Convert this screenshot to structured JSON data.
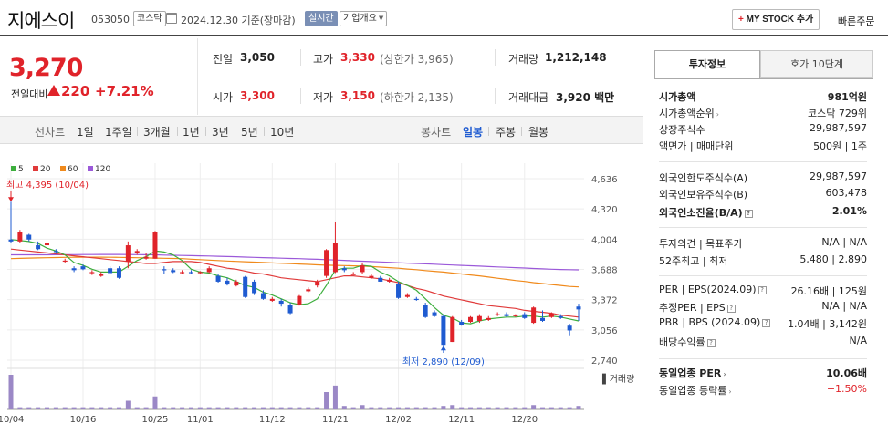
{
  "header": {
    "stock_name": "지에스이",
    "stock_code": "053050",
    "market_badge": "코스닥",
    "base_date": "2024.12.30 기준(장마감)",
    "realtime_badge": "실시간",
    "company_overview": "기업개요",
    "mystock_button": "MY STOCK 추가",
    "quick_order": "빠른주문"
  },
  "price": {
    "current": "3,270",
    "change_label": "전일대비",
    "change_amount": "220",
    "change_rate": "+7.21%"
  },
  "quote": {
    "prev_close_label": "전일",
    "prev_close": "3,050",
    "high_label": "고가",
    "high": "3,330",
    "upper_limit": "(상한가 3,965)",
    "volume_label": "거래량",
    "volume": "1,212,148",
    "open_label": "시가",
    "open": "3,300",
    "low_label": "저가",
    "low": "3,150",
    "lower_limit": "(하한가 2,135)",
    "amount_label": "거래대금",
    "amount": "3,920 백만"
  },
  "period_bar": {
    "line_label": "선차트",
    "line_periods": [
      "1일",
      "1주일",
      "3개월",
      "1년",
      "3년",
      "5년",
      "10년"
    ],
    "candle_label": "봉차트",
    "candle_periods": [
      "일봉",
      "주봉",
      "월봉"
    ],
    "active_candle": "일봉"
  },
  "side_panel": {
    "tab_active": "투자정보",
    "tab_other": "호가 10단계",
    "market_cap_label": "시가총액",
    "market_cap": "981억원",
    "market_cap_rank_label": "시가총액순위",
    "market_cap_rank": "코스닥 729위",
    "listed_shares_label": "상장주식수",
    "listed_shares": "29,987,597",
    "par_label": "액면가 | 매매단위",
    "par_value": "500원 | 1주",
    "foreign_limit_label": "외국인한도주식수(A)",
    "foreign_limit": "29,987,597",
    "foreign_held_label": "외국인보유주식수(B)",
    "foreign_held": "603,478",
    "foreign_ratio_label": "외국인소진율(B/A)",
    "foreign_ratio": "2.01%",
    "opinion_label": "투자의견 | 목표주가",
    "opinion_value": "N/A | N/A",
    "week52_label": "52주최고 | 최저",
    "week52_value": "5,480 | 2,890",
    "per_label": "PER | EPS(2024.09)",
    "per_value": "26.16배 | 125원",
    "est_per_label": "추정PER | EPS",
    "est_per_value": "N/A | N/A",
    "pbr_label": "PBR | BPS (2024.09)",
    "pbr_value": "1.04배 | 3,142원",
    "dividend_label": "배당수익률",
    "dividend_value": "N/A",
    "sector_per_label": "동일업종 PER",
    "sector_per": "10.06배",
    "sector_change_label": "동일업종 등락률",
    "sector_change": "+1.50%"
  },
  "chart_data": {
    "type": "candlestick",
    "legend": [
      {
        "name": "5",
        "color": "#3dae3d"
      },
      {
        "name": "20",
        "color": "#e03a3a"
      },
      {
        "name": "60",
        "color": "#f08a1c"
      },
      {
        "name": "120",
        "color": "#9b59d9"
      }
    ],
    "y_ticks": [
      "4,636",
      "4,320",
      "4,004",
      "3,688",
      "3,372",
      "3,056",
      "2,740"
    ],
    "ylim": [
      2740,
      4636
    ],
    "x_ticks": [
      {
        "label": "10/04",
        "index": 0
      },
      {
        "label": "10/16",
        "index": 8
      },
      {
        "label": "10/25",
        "index": 16
      },
      {
        "label": "11/01",
        "index": 21
      },
      {
        "label": "11/12",
        "index": 29
      },
      {
        "label": "11/21",
        "index": 36
      },
      {
        "label": "12/02",
        "index": 43
      },
      {
        "label": "12/11",
        "index": 50
      },
      {
        "label": "12/20",
        "index": 57
      }
    ],
    "high_annotation": "최고 4,395 (10/04)",
    "low_annotation": "최저 2,890 (12/09)",
    "volume_label": "거래량",
    "candles": [
      [
        4000,
        3980,
        4395,
        3960
      ],
      [
        3980,
        4080,
        4100,
        3960
      ],
      [
        4050,
        4000,
        4060,
        3980
      ],
      [
        3940,
        3900,
        3980,
        3890
      ],
      [
        3940,
        3960,
        3980,
        3930
      ],
      [
        3880,
        3870,
        3900,
        3850
      ],
      [
        3780,
        3780,
        3800,
        3760
      ],
      [
        3700,
        3680,
        3720,
        3660
      ],
      [
        3720,
        3690,
        3740,
        3680
      ],
      [
        3650,
        3660,
        3680,
        3630
      ],
      [
        3620,
        3640,
        3660,
        3610
      ],
      [
        3700,
        3650,
        3720,
        3640
      ],
      [
        3700,
        3600,
        3720,
        3590
      ],
      [
        3770,
        3940,
        3980,
        3700
      ],
      [
        3860,
        3880,
        3900,
        3840
      ],
      [
        3800,
        3820,
        3860,
        3790
      ],
      [
        3800,
        4080,
        4090,
        3800
      ],
      [
        3690,
        3680,
        3720,
        3640
      ],
      [
        3680,
        3660,
        3700,
        3650
      ],
      [
        3660,
        3660,
        3680,
        3640
      ],
      [
        3660,
        3650,
        3680,
        3640
      ],
      [
        3650,
        3660,
        3670,
        3640
      ],
      [
        3660,
        3700,
        3720,
        3650
      ],
      [
        3620,
        3560,
        3640,
        3550
      ],
      [
        3570,
        3530,
        3600,
        3520
      ],
      [
        3520,
        3560,
        3580,
        3510
      ],
      [
        3610,
        3400,
        3620,
        3390
      ],
      [
        3560,
        3440,
        3580,
        3420
      ],
      [
        3440,
        3380,
        3470,
        3370
      ],
      [
        3360,
        3380,
        3400,
        3350
      ],
      [
        3360,
        3330,
        3380,
        3300
      ],
      [
        3320,
        3230,
        3340,
        3220
      ],
      [
        3320,
        3410,
        3420,
        3310
      ],
      [
        3460,
        3480,
        3500,
        3450
      ],
      [
        3520,
        3560,
        3580,
        3500
      ],
      [
        3620,
        3890,
        3900,
        3600
      ],
      [
        3660,
        3960,
        4180,
        3650
      ],
      [
        3700,
        3680,
        3720,
        3660
      ],
      [
        3640,
        3640,
        3660,
        3630
      ],
      [
        3660,
        3730,
        3760,
        3640
      ],
      [
        3600,
        3620,
        3640,
        3590
      ],
      [
        3600,
        3560,
        3620,
        3560
      ],
      [
        3560,
        3580,
        3600,
        3550
      ],
      [
        3540,
        3390,
        3560,
        3380
      ],
      [
        3400,
        3420,
        3440,
        3390
      ],
      [
        3380,
        3370,
        3400,
        3360
      ],
      [
        3320,
        3190,
        3340,
        3180
      ],
      [
        3240,
        3200,
        3260,
        3190
      ],
      [
        3200,
        2900,
        3220,
        2890
      ],
      [
        2930,
        3190,
        3200,
        2930
      ],
      [
        3140,
        3110,
        3160,
        3100
      ],
      [
        3140,
        3190,
        3200,
        3130
      ],
      [
        3150,
        3200,
        3220,
        3130
      ],
      [
        3160,
        3180,
        3200,
        3150
      ],
      [
        3210,
        3220,
        3240,
        3200
      ],
      [
        3220,
        3200,
        3240,
        3190
      ],
      [
        3200,
        3210,
        3220,
        3190
      ],
      [
        3220,
        3180,
        3240,
        3170
      ],
      [
        3130,
        3290,
        3300,
        3120
      ],
      [
        3180,
        3150,
        3260,
        3140
      ],
      [
        3190,
        3230,
        3240,
        3180
      ],
      [
        3200,
        3180,
        3220,
        3170
      ],
      [
        3100,
        3050,
        3120,
        3000
      ],
      [
        3300,
        3270,
        3330,
        3150
      ]
    ],
    "volume": [
      8,
      0.5,
      0.5,
      0.5,
      0.5,
      0.5,
      0.5,
      0.5,
      0.5,
      0.5,
      0.5,
      0.5,
      0.5,
      2,
      0.5,
      0.5,
      3,
      0.5,
      0.5,
      0.5,
      0.5,
      0.5,
      0.5,
      0.5,
      0.5,
      0.5,
      0.5,
      0.5,
      0.5,
      0.5,
      0.5,
      0.5,
      0.5,
      0.5,
      0.5,
      4,
      5.5,
      0.8,
      0.5,
      1,
      0.5,
      0.5,
      0.5,
      0.5,
      0.5,
      0.5,
      0.5,
      0.5,
      0.8,
      1,
      0.5,
      0.5,
      0.5,
      0.5,
      0.5,
      0.5,
      0.5,
      0.5,
      1,
      0.5,
      0.5,
      0.5,
      0.5,
      0.8
    ],
    "ma5": [
      4000,
      3990,
      3980,
      3960,
      3910,
      3880,
      3840,
      3760,
      3730,
      3690,
      3660,
      3660,
      3660,
      3720,
      3780,
      3820,
      3880,
      3870,
      3840,
      3780,
      3690,
      3660,
      3650,
      3620,
      3600,
      3560,
      3520,
      3500,
      3450,
      3420,
      3380,
      3340,
      3320,
      3330,
      3380,
      3520,
      3680,
      3700,
      3700,
      3730,
      3720,
      3660,
      3620,
      3560,
      3520,
      3470,
      3380,
      3290,
      3210,
      3180,
      3130,
      3120,
      3150,
      3170,
      3180,
      3190,
      3190,
      3200,
      3200,
      3190,
      3200,
      3190,
      3170,
      3150
    ],
    "ma20": [
      3900,
      3890,
      3880,
      3870,
      3860,
      3850,
      3840,
      3830,
      3820,
      3810,
      3800,
      3790,
      3780,
      3770,
      3760,
      3750,
      3750,
      3760,
      3770,
      3770,
      3770,
      3760,
      3740,
      3720,
      3700,
      3690,
      3670,
      3650,
      3640,
      3620,
      3600,
      3590,
      3580,
      3570,
      3560,
      3580,
      3600,
      3620,
      3620,
      3610,
      3600,
      3590,
      3570,
      3550,
      3520,
      3490,
      3470,
      3440,
      3410,
      3390,
      3370,
      3350,
      3330,
      3310,
      3300,
      3290,
      3280,
      3260,
      3250,
      3240,
      3230,
      3210,
      3200,
      3190
    ],
    "ma60": [
      3800,
      3803,
      3806,
      3808,
      3810,
      3812,
      3814,
      3815,
      3816,
      3816,
      3816,
      3815,
      3814,
      3812,
      3810,
      3808,
      3806,
      3804,
      3802,
      3800,
      3795,
      3790,
      3785,
      3780,
      3776,
      3772,
      3768,
      3764,
      3760,
      3756,
      3752,
      3748,
      3744,
      3740,
      3736,
      3732,
      3730,
      3728,
      3725,
      3722,
      3718,
      3712,
      3706,
      3700,
      3692,
      3685,
      3676,
      3668,
      3660,
      3650,
      3640,
      3630,
      3620,
      3608,
      3596,
      3584,
      3572,
      3562,
      3550,
      3540,
      3530,
      3520,
      3510,
      3505
    ],
    "ma120": [
      3840,
      3840,
      3840,
      3840,
      3840,
      3841,
      3842,
      3842,
      3843,
      3843,
      3844,
      3844,
      3844,
      3843,
      3842,
      3841,
      3840,
      3838,
      3836,
      3834,
      3832,
      3830,
      3828,
      3825,
      3822,
      3820,
      3817,
      3814,
      3811,
      3808,
      3805,
      3802,
      3800,
      3797,
      3794,
      3790,
      3786,
      3782,
      3778,
      3774,
      3770,
      3766,
      3762,
      3758,
      3754,
      3750,
      3746,
      3742,
      3738,
      3734,
      3730,
      3726,
      3722,
      3718,
      3714,
      3710,
      3706,
      3702,
      3698,
      3694,
      3690,
      3687,
      3685,
      3683
    ]
  }
}
